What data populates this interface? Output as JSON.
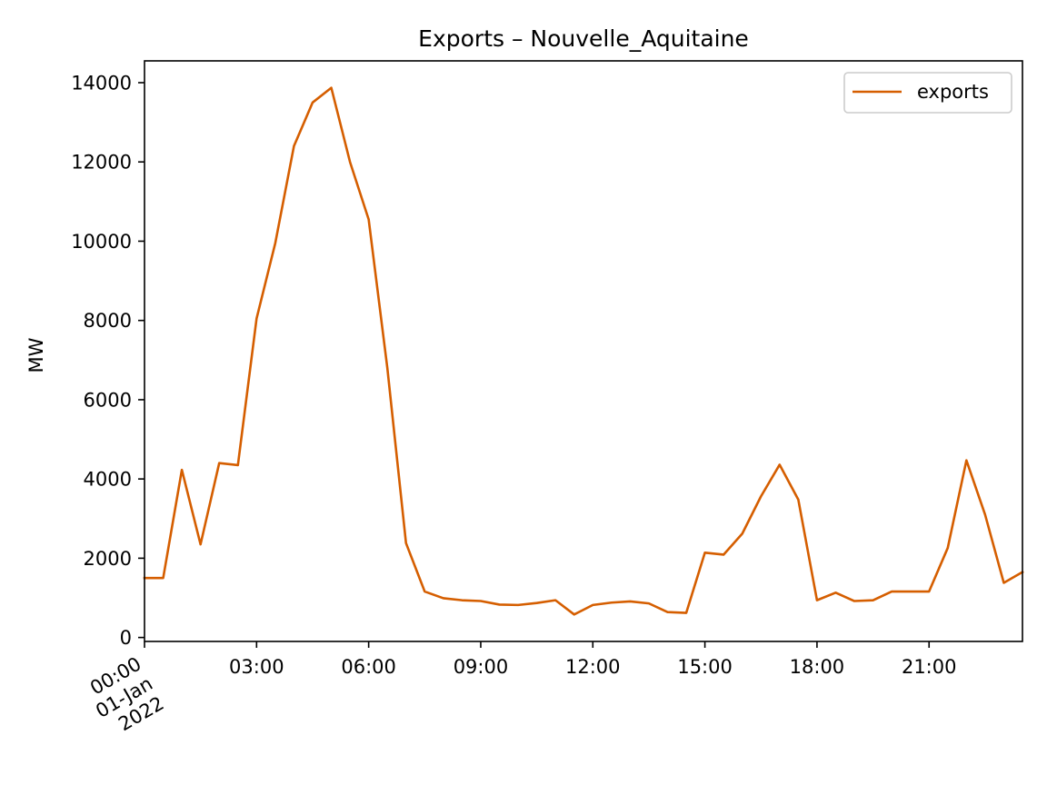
{
  "chart_data": {
    "type": "line",
    "title": "Exports – Nouvelle_Aquitaine",
    "xlabel": "",
    "ylabel": "MW",
    "x": [
      "00:00",
      "00:30",
      "01:00",
      "01:30",
      "02:00",
      "02:30",
      "03:00",
      "03:30",
      "04:00",
      "04:30",
      "05:00",
      "05:30",
      "06:00",
      "06:30",
      "07:00",
      "07:30",
      "08:00",
      "08:30",
      "09:00",
      "09:30",
      "10:00",
      "10:30",
      "11:00",
      "11:30",
      "12:00",
      "12:30",
      "13:00",
      "13:30",
      "14:00",
      "14:30",
      "15:00",
      "15:30",
      "16:00",
      "16:30",
      "17:00",
      "17:30",
      "18:00",
      "18:30",
      "19:00",
      "19:30",
      "20:00",
      "20:30",
      "21:00",
      "21:30",
      "22:00",
      "22:30",
      "23:00",
      "23:30"
    ],
    "x_unit": "time of day, 01-Jan-2022",
    "series": [
      {
        "name": "exports",
        "color": "#d55e00",
        "values": [
          1500,
          1500,
          4230,
          2350,
          4400,
          4350,
          8050,
          9950,
          12400,
          13500,
          13870,
          12000,
          10550,
          6800,
          2380,
          1160,
          990,
          940,
          920,
          830,
          820,
          870,
          940,
          580,
          820,
          880,
          910,
          860,
          640,
          620,
          2140,
          2090,
          2620,
          3560,
          4360,
          3480,
          940,
          1130,
          920,
          940,
          1160,
          1160,
          1160,
          2260,
          4470,
          3100,
          1380,
          1650
        ]
      }
    ],
    "ylim": [
      -100,
      14550
    ],
    "yticks": [
      0,
      2000,
      4000,
      6000,
      8000,
      10000,
      12000,
      14000
    ],
    "ytick_labels": [
      "0",
      "2000",
      "4000",
      "6000",
      "8000",
      "10000",
      "12000",
      "14000"
    ],
    "xticks": [
      0,
      180,
      360,
      540,
      720,
      900,
      1080,
      1260
    ],
    "xtick_labels": [
      "00:00\n01-Jan\n2022",
      "03:00",
      "06:00",
      "09:00",
      "12:00",
      "15:00",
      "18:00",
      "21:00"
    ],
    "xlim_minutes": [
      0,
      1410
    ],
    "grid": false,
    "legend_position": "top-right"
  }
}
